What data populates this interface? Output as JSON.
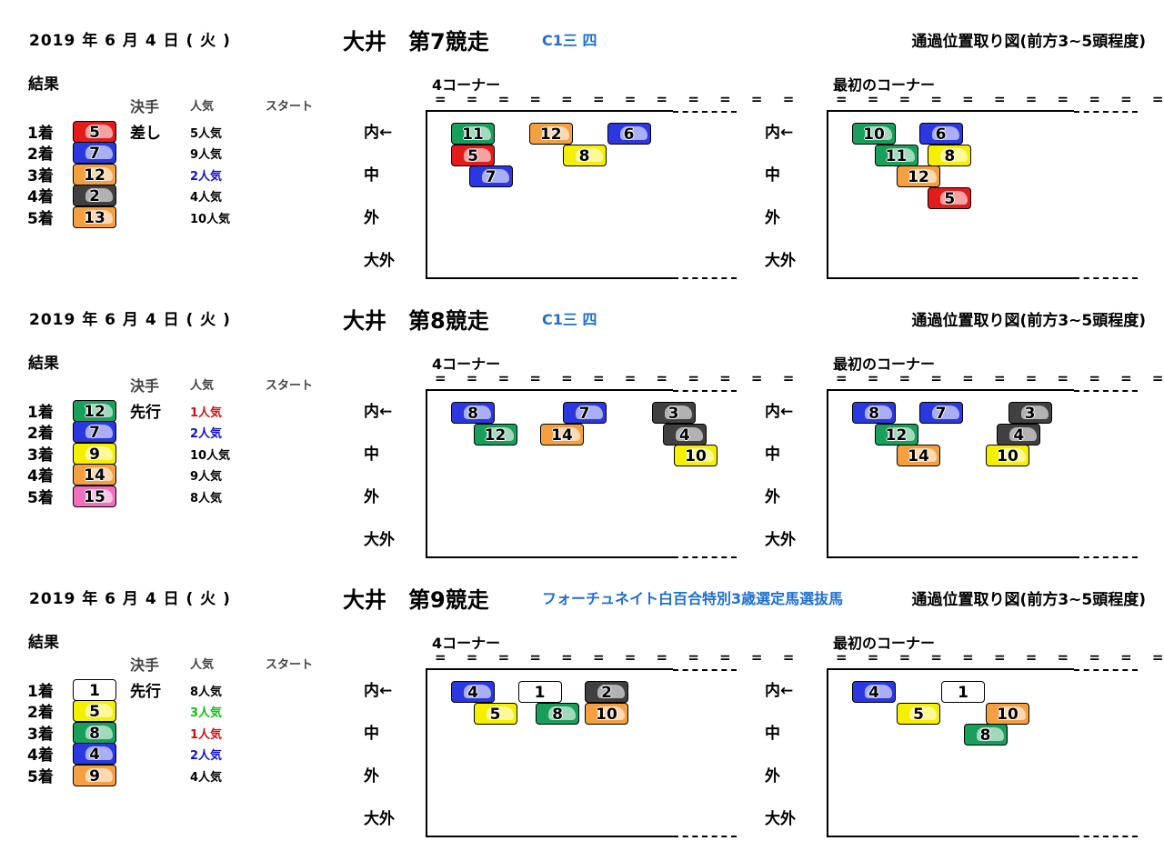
{
  "common": {
    "result_label": "結果",
    "col_kimete": "決手",
    "col_ninki": "人気",
    "col_start": "スタート",
    "corner4_label": "4コーナー",
    "corner1_label": "最初のコーナー",
    "eq_text": "= = = = = = = = = = = =",
    "lanes": [
      "内←",
      "中",
      "外",
      "大外"
    ],
    "diagram_title": "通過位置取り図(前方3~5頭程度)"
  },
  "colors": {
    "1": "#ffffff",
    "2": "#404040",
    "3": "#e31b1b",
    "4": "#2b38e0",
    "5": "#f5f000",
    "6": "#18a05a",
    "7": "#f5a040",
    "8": "#f070c0",
    "accent_blue": "#1f6fd0",
    "ninki_red": "#d01010",
    "ninki_blue": "#1010d0",
    "ninki_green": "#10c010"
  },
  "races": [
    {
      "date": "2019 年 6 月 4 日 ( 火 )",
      "name": "大井　第7競走",
      "class": "C1三 四",
      "results": [
        {
          "rank": "1着",
          "num": "5",
          "frame": 3,
          "kimete": "差し",
          "ninki": "5人気",
          "ninki_color": ""
        },
        {
          "rank": "2着",
          "num": "7",
          "frame": 4,
          "kimete": "",
          "ninki": "9人気",
          "ninki_color": ""
        },
        {
          "rank": "3着",
          "num": "12",
          "frame": 7,
          "kimete": "",
          "ninki": "2人気",
          "ninki_color": "ninki_blue"
        },
        {
          "rank": "4着",
          "num": "2",
          "frame": 2,
          "kimete": "",
          "ninki": "4人気",
          "ninki_color": ""
        },
        {
          "rank": "5着",
          "num": "13",
          "frame": 7,
          "kimete": "",
          "ninki": "10人気",
          "ninki_color": ""
        }
      ],
      "corner4": [
        {
          "num": "11",
          "frame": 6,
          "col": 0,
          "row": 0
        },
        {
          "num": "12",
          "frame": 7,
          "col": 3.5,
          "row": 0
        },
        {
          "num": "6",
          "frame": 4,
          "col": 7,
          "row": 0
        },
        {
          "num": "5",
          "frame": 3,
          "col": 0,
          "row": 1
        },
        {
          "num": "8",
          "frame": 5,
          "col": 5,
          "row": 1
        },
        {
          "num": "7",
          "frame": 4,
          "col": 0.8,
          "row": 2
        }
      ],
      "corner1": [
        {
          "num": "10",
          "frame": 6,
          "col": 0,
          "row": 0
        },
        {
          "num": "6",
          "frame": 4,
          "col": 3,
          "row": 0
        },
        {
          "num": "11",
          "frame": 6,
          "col": 1,
          "row": 1
        },
        {
          "num": "8",
          "frame": 5,
          "col": 3.4,
          "row": 1
        },
        {
          "num": "12",
          "frame": 7,
          "col": 2,
          "row": 2
        },
        {
          "num": "5",
          "frame": 3,
          "col": 3.4,
          "row": 3
        }
      ]
    },
    {
      "date": "2019 年 6 月 4 日 ( 火 )",
      "name": "大井　第8競走",
      "class": "C1三 四",
      "results": [
        {
          "rank": "1着",
          "num": "12",
          "frame": 6,
          "kimete": "先行",
          "ninki": "1人気",
          "ninki_color": "ninki_red"
        },
        {
          "rank": "2着",
          "num": "7",
          "frame": 4,
          "kimete": "",
          "ninki": "2人気",
          "ninki_color": "ninki_blue"
        },
        {
          "rank": "3着",
          "num": "9",
          "frame": 5,
          "kimete": "",
          "ninki": "10人気",
          "ninki_color": ""
        },
        {
          "rank": "4着",
          "num": "14",
          "frame": 7,
          "kimete": "",
          "ninki": "9人気",
          "ninki_color": ""
        },
        {
          "rank": "5着",
          "num": "15",
          "frame": 8,
          "kimete": "",
          "ninki": "8人気",
          "ninki_color": ""
        }
      ],
      "corner4": [
        {
          "num": "8",
          "frame": 4,
          "col": 0,
          "row": 0
        },
        {
          "num": "7",
          "frame": 4,
          "col": 5,
          "row": 0
        },
        {
          "num": "3",
          "frame": 2,
          "col": 9,
          "row": 0
        },
        {
          "num": "12",
          "frame": 6,
          "col": 1,
          "row": 1
        },
        {
          "num": "14",
          "frame": 7,
          "col": 4,
          "row": 1
        },
        {
          "num": "4",
          "frame": 2,
          "col": 9.5,
          "row": 1
        },
        {
          "num": "10",
          "frame": 5,
          "col": 10,
          "row": 2
        }
      ],
      "corner1": [
        {
          "num": "8",
          "frame": 4,
          "col": 0,
          "row": 0
        },
        {
          "num": "7",
          "frame": 4,
          "col": 3,
          "row": 0
        },
        {
          "num": "3",
          "frame": 2,
          "col": 7,
          "row": 0
        },
        {
          "num": "12",
          "frame": 6,
          "col": 1,
          "row": 1
        },
        {
          "num": "4",
          "frame": 2,
          "col": 6.5,
          "row": 1
        },
        {
          "num": "14",
          "frame": 7,
          "col": 2,
          "row": 2
        },
        {
          "num": "10",
          "frame": 5,
          "col": 6,
          "row": 2
        }
      ]
    },
    {
      "date": "2019 年 6 月 4 日 ( 火 )",
      "name": "大井　第9競走",
      "class": "フォーチュネイト白百合特別3歳選定馬選抜馬",
      "results": [
        {
          "rank": "1着",
          "num": "1",
          "frame": 1,
          "kimete": "先行",
          "ninki": "8人気",
          "ninki_color": ""
        },
        {
          "rank": "2着",
          "num": "5",
          "frame": 5,
          "kimete": "",
          "ninki": "3人気",
          "ninki_color": "ninki_green"
        },
        {
          "rank": "3着",
          "num": "8",
          "frame": 6,
          "kimete": "",
          "ninki": "1人気",
          "ninki_color": "ninki_red"
        },
        {
          "rank": "4着",
          "num": "4",
          "frame": 4,
          "kimete": "",
          "ninki": "2人気",
          "ninki_color": "ninki_blue"
        },
        {
          "rank": "5着",
          "num": "9",
          "frame": 7,
          "kimete": "",
          "ninki": "4人気",
          "ninki_color": ""
        }
      ],
      "corner4": [
        {
          "num": "4",
          "frame": 4,
          "col": 0,
          "row": 0
        },
        {
          "num": "1",
          "frame": 1,
          "col": 3,
          "row": 0
        },
        {
          "num": "2",
          "frame": 2,
          "col": 6,
          "row": 0
        },
        {
          "num": "5",
          "frame": 5,
          "col": 1,
          "row": 1
        },
        {
          "num": "8",
          "frame": 6,
          "col": 3.8,
          "row": 1
        },
        {
          "num": "10",
          "frame": 7,
          "col": 6,
          "row": 1
        }
      ],
      "corner1": [
        {
          "num": "4",
          "frame": 4,
          "col": 0,
          "row": 0
        },
        {
          "num": "1",
          "frame": 1,
          "col": 4,
          "row": 0
        },
        {
          "num": "5",
          "frame": 5,
          "col": 2,
          "row": 1
        },
        {
          "num": "10",
          "frame": 7,
          "col": 6,
          "row": 1
        },
        {
          "num": "8",
          "frame": 6,
          "col": 5,
          "row": 2
        }
      ]
    }
  ]
}
